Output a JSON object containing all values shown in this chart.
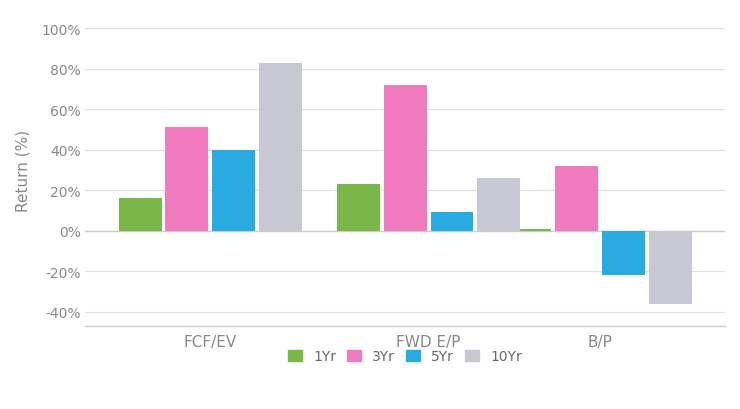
{
  "categories": [
    "FCF/EV",
    "FWD E/P",
    "B/P"
  ],
  "series": {
    "1Yr": [
      16,
      23,
      1
    ],
    "3Yr": [
      51,
      72,
      32
    ],
    "5Yr": [
      40,
      9,
      -22
    ],
    "10Yr": [
      83,
      26,
      -36
    ]
  },
  "colors": {
    "1Yr": "#7ab648",
    "3Yr": "#f07cbf",
    "5Yr": "#29abe2",
    "10Yr": "#c8c8d4"
  },
  "ylabel": "Return (%)",
  "ylim": [
    -47,
    107
  ],
  "yticks": [
    -40,
    -20,
    0,
    20,
    40,
    60,
    80,
    100
  ],
  "legend_order": [
    "1Yr",
    "3Yr",
    "5Yr",
    "10Yr"
  ],
  "background_color": "#ffffff",
  "bar_width": 0.55,
  "x_positions": [
    0.0,
    2.8,
    5.0
  ]
}
